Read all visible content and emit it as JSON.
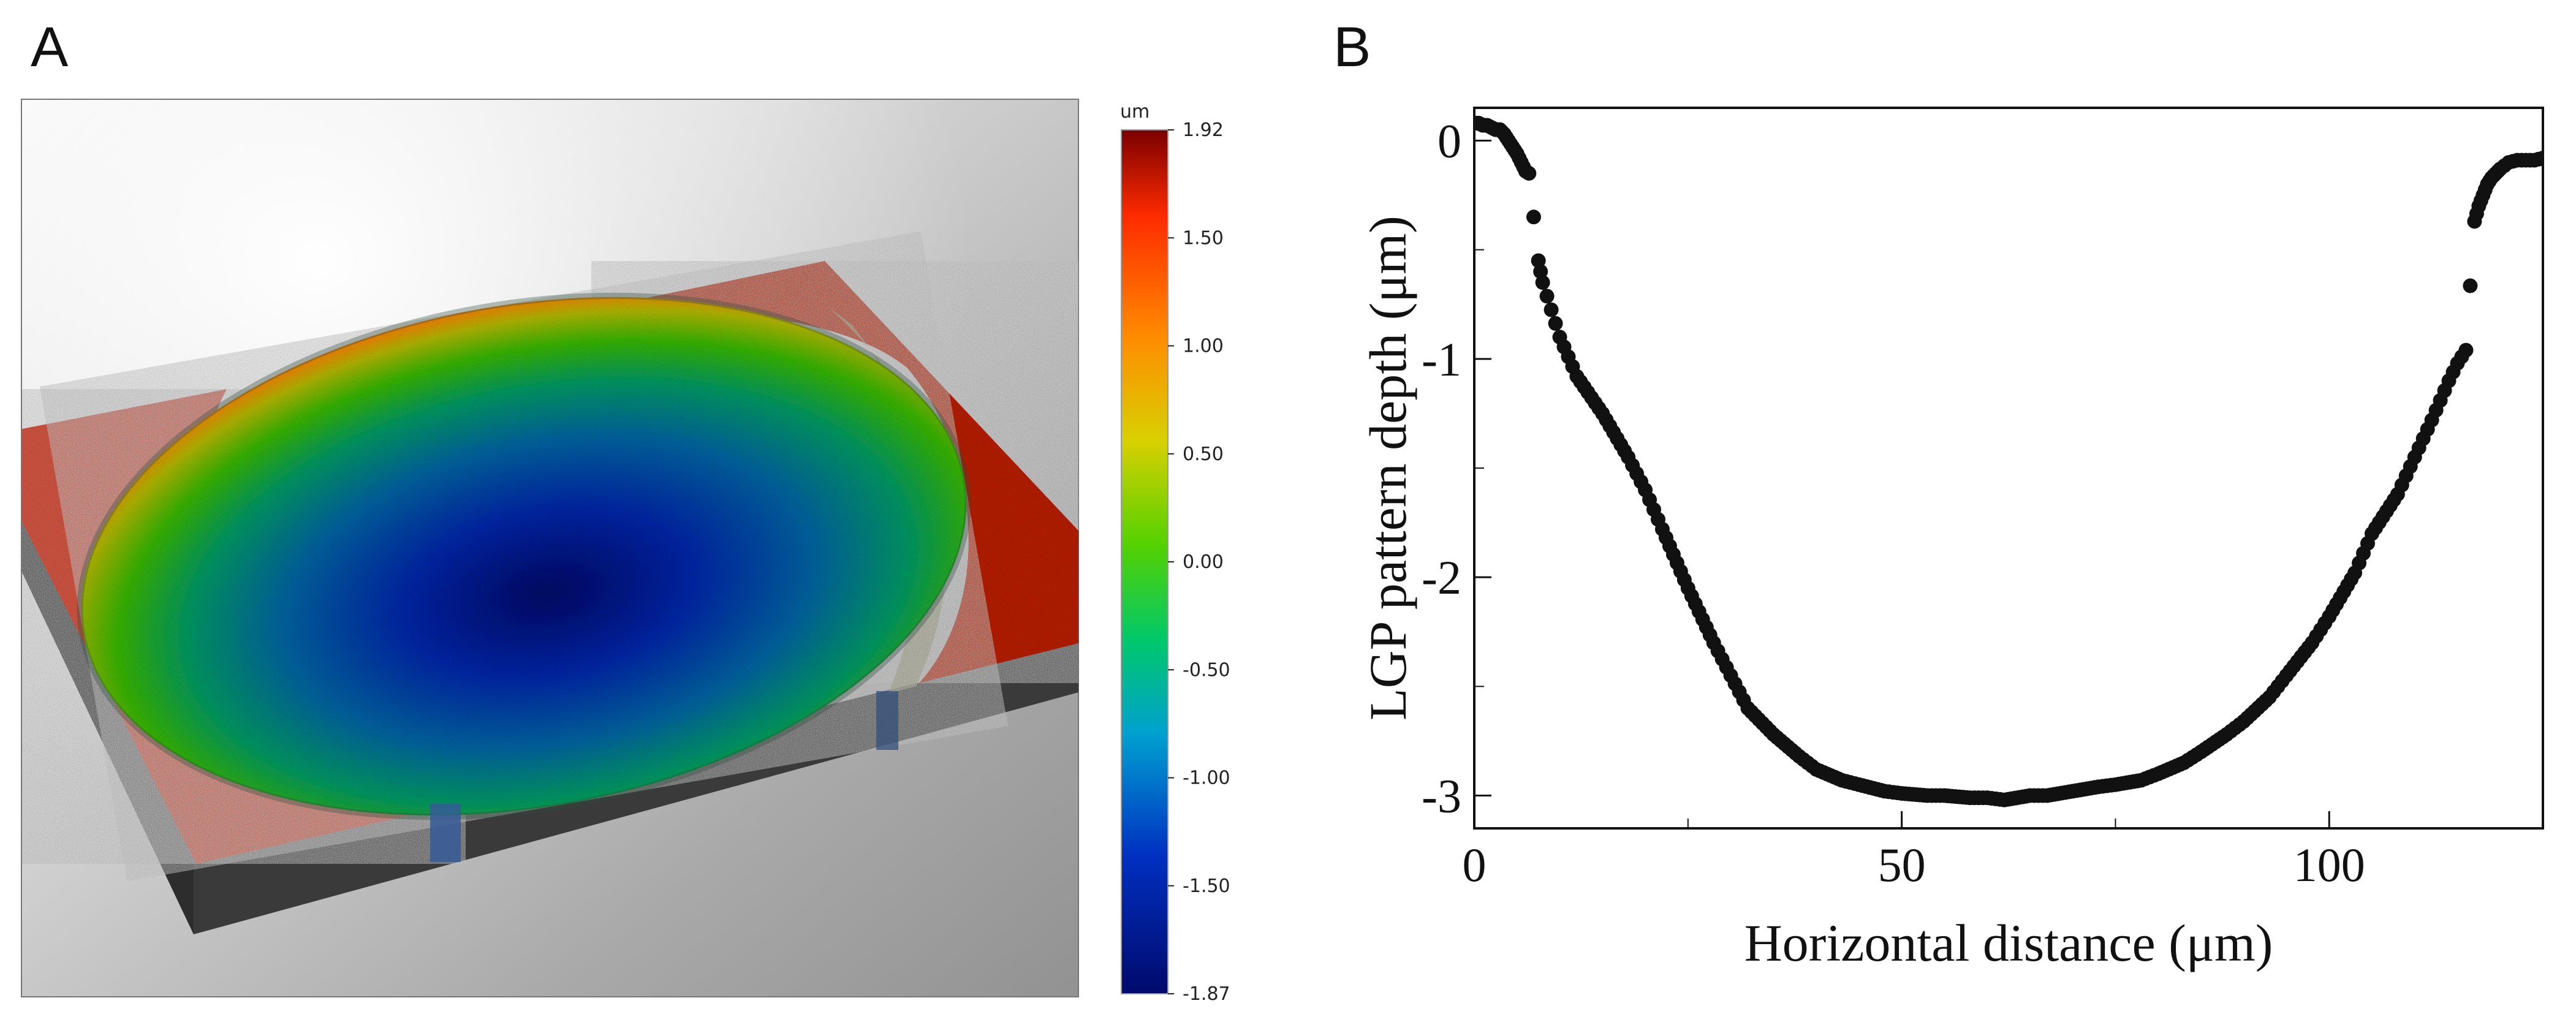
{
  "figure": {
    "panel_a_label": "A",
    "panel_b_label": "B"
  },
  "panel_a": {
    "colorbar": {
      "unit": "um",
      "ticks": [
        "1.92",
        "1.50",
        "1.00",
        "0.50",
        "0.00",
        "-0.50",
        "-1.00",
        "-1.50",
        "-1.87"
      ],
      "min": -1.87,
      "max": 1.92,
      "colors": [
        "#7a0000",
        "#ff2a00",
        "#ff8c00",
        "#d8d000",
        "#55d100",
        "#00c86b",
        "#00a0d0",
        "#0030c0",
        "#000a6c"
      ]
    }
  },
  "chart_data": {
    "type": "scatter",
    "xlabel": "Horizontal distance (μm)",
    "ylabel": "LGP pattern depth (μm)",
    "xlim": [
      0,
      125
    ],
    "ylim": [
      -3.15,
      0.15
    ],
    "xticks": [
      0,
      50,
      100
    ],
    "yticks": [
      0,
      -1,
      -2,
      -3
    ],
    "x_tick_labels": [
      "0",
      "50",
      "100"
    ],
    "y_tick_labels": [
      "0",
      "-1",
      "-2",
      "-3"
    ],
    "minor_x_ticks": [
      25,
      75
    ],
    "minor_y_ticks": [
      -0.5,
      -1.5,
      -2.5
    ],
    "point_color": "#111111",
    "series": [
      {
        "x": [
          0.0,
          0.5,
          1.0,
          1.5,
          2.0,
          2.5,
          3.0,
          3.5,
          4.0,
          4.5,
          5.0,
          5.5,
          6.0,
          6.4,
          7.5,
          8.0,
          10.0,
          12.0,
          15.0,
          18.0,
          20.0,
          22.0,
          25.0,
          28.0,
          30.0,
          32.0,
          35.0,
          38.0,
          40.0,
          43.0,
          45.0,
          48.0,
          50.0,
          53.0,
          55.0,
          58.0,
          60.0,
          62.0,
          65.0,
          67.0,
          70.0,
          73.0,
          75.0,
          78.0,
          80.0,
          83.0,
          85.0,
          88.0,
          90.0,
          93.0,
          95.0,
          98.0,
          100.0,
          103.0,
          105.0,
          108.0,
          110.0,
          112.0,
          114.0,
          115.0,
          116.0,
          117.0,
          117.5,
          118.0,
          118.5,
          119.0,
          119.5,
          120.0,
          121.0,
          122.0,
          123.0,
          124.0,
          125.0
        ],
        "y": [
          0.08,
          0.08,
          0.07,
          0.07,
          0.06,
          0.05,
          0.05,
          0.03,
          0.0,
          -0.03,
          -0.06,
          -0.1,
          -0.14,
          -0.15,
          -0.55,
          -0.65,
          -0.9,
          -1.08,
          -1.25,
          -1.45,
          -1.6,
          -1.78,
          -2.05,
          -2.3,
          -2.45,
          -2.6,
          -2.72,
          -2.82,
          -2.88,
          -2.93,
          -2.95,
          -2.98,
          -2.99,
          -3.0,
          -3.0,
          -3.01,
          -3.01,
          -3.02,
          -3.0,
          -3.0,
          -2.98,
          -2.96,
          -2.95,
          -2.93,
          -2.9,
          -2.85,
          -2.8,
          -2.72,
          -2.66,
          -2.55,
          -2.45,
          -2.3,
          -2.18,
          -1.98,
          -1.8,
          -1.62,
          -1.45,
          -1.28,
          -1.1,
          -1.02,
          -0.96,
          -0.37,
          -0.3,
          -0.25,
          -0.2,
          -0.17,
          -0.15,
          -0.13,
          -0.1,
          -0.09,
          -0.09,
          -0.09,
          -0.08
        ]
      }
    ]
  }
}
